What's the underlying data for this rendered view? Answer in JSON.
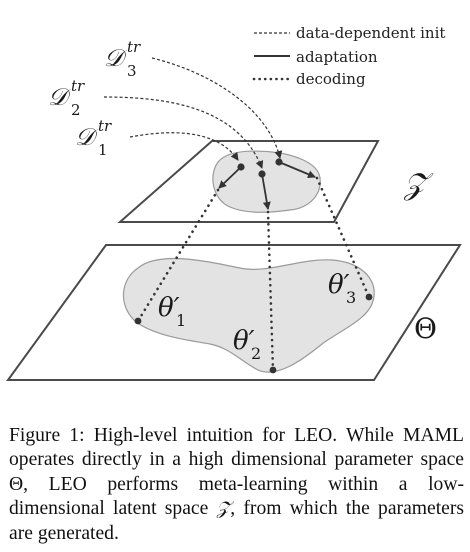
{
  "legend": {
    "items": [
      {
        "style": "dashed",
        "label": "data-dependent init"
      },
      {
        "style": "solid",
        "label": "adaptation"
      },
      {
        "style": "dotted",
        "label": "decoding"
      }
    ]
  },
  "datasets": [
    {
      "symbol": "𝒟",
      "sup": "tr",
      "sub": "3"
    },
    {
      "symbol": "𝒟",
      "sup": "tr",
      "sub": "2"
    },
    {
      "symbol": "𝒟",
      "sup": "tr",
      "sub": "1"
    }
  ],
  "planes": {
    "latent_label": "𝒵",
    "parameter_label": "Θ"
  },
  "params": [
    {
      "symbol": "θ′",
      "sub": "1"
    },
    {
      "symbol": "θ′",
      "sub": "2"
    },
    {
      "symbol": "θ′",
      "sub": "3"
    }
  ],
  "caption": {
    "lead": "Figure 1:  High-level intuition for LEO. While MAML operates directly in a high dimensional parameter space ",
    "theta": "Θ",
    "mid": ", LEO performs meta-learning within a low-dimensional latent space ",
    "z": "𝒵",
    "tail": ", from which the parameters are generated."
  },
  "colors": {
    "line": "#333333",
    "plane_fill": "#ffffff",
    "region_fill": "#e3e3e3",
    "region_stroke": "#9a9a9a"
  }
}
